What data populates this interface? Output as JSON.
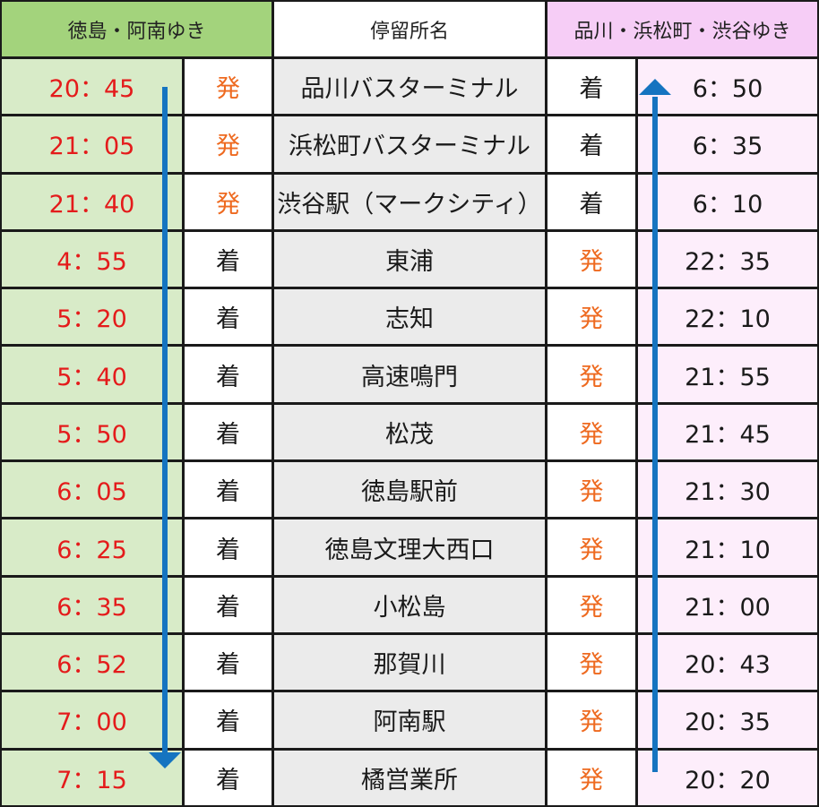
{
  "header": {
    "down_label": "徳島・阿南ゆき",
    "stop_label": "停留所名",
    "up_label": "品川・浜松町・渋谷ゆき"
  },
  "colors": {
    "down_header": "#a3d37c",
    "down_cells": "#d8ebc8",
    "up_header": "#f6cdf6",
    "up_cells": "#fdeefb",
    "stop_cells": "#ebebeb",
    "down_time_text": "#e41b1b",
    "departure_mark": "#ee6a20",
    "arrow": "#1574c0"
  },
  "icons": {
    "down_direction": "arrow-down-icon",
    "up_direction": "arrow-up-icon"
  },
  "rows": [
    {
      "down_time": "20：45",
      "down_mark": "発",
      "stop": "品川バスターミナル",
      "up_mark": "着",
      "up_time": "6：50"
    },
    {
      "down_time": "21：05",
      "down_mark": "発",
      "stop": "浜松町バスターミナル",
      "up_mark": "着",
      "up_time": "6：35"
    },
    {
      "down_time": "21：40",
      "down_mark": "発",
      "stop": "渋谷駅（マークシティ）",
      "up_mark": "着",
      "up_time": "6：10"
    },
    {
      "down_time": "4：55",
      "down_mark": "着",
      "stop": "東浦",
      "up_mark": "発",
      "up_time": "22：35"
    },
    {
      "down_time": "5：20",
      "down_mark": "着",
      "stop": "志知",
      "up_mark": "発",
      "up_time": "22：10"
    },
    {
      "down_time": "5：40",
      "down_mark": "着",
      "stop": "高速鳴門",
      "up_mark": "発",
      "up_time": "21：55"
    },
    {
      "down_time": "5：50",
      "down_mark": "着",
      "stop": "松茂",
      "up_mark": "発",
      "up_time": "21：45"
    },
    {
      "down_time": "6：05",
      "down_mark": "着",
      "stop": "徳島駅前",
      "up_mark": "発",
      "up_time": "21：30"
    },
    {
      "down_time": "6：25",
      "down_mark": "着",
      "stop": "徳島文理大西口",
      "up_mark": "発",
      "up_time": "21：10"
    },
    {
      "down_time": "6：35",
      "down_mark": "着",
      "stop": "小松島",
      "up_mark": "発",
      "up_time": "21：00"
    },
    {
      "down_time": "6：52",
      "down_mark": "着",
      "stop": "那賀川",
      "up_mark": "発",
      "up_time": "20：43"
    },
    {
      "down_time": "7：00",
      "down_mark": "着",
      "stop": "阿南駅",
      "up_mark": "発",
      "up_time": "20：35"
    },
    {
      "down_time": "7：15",
      "down_mark": "着",
      "stop": "橘営業所",
      "up_mark": "発",
      "up_time": "20：20"
    }
  ]
}
